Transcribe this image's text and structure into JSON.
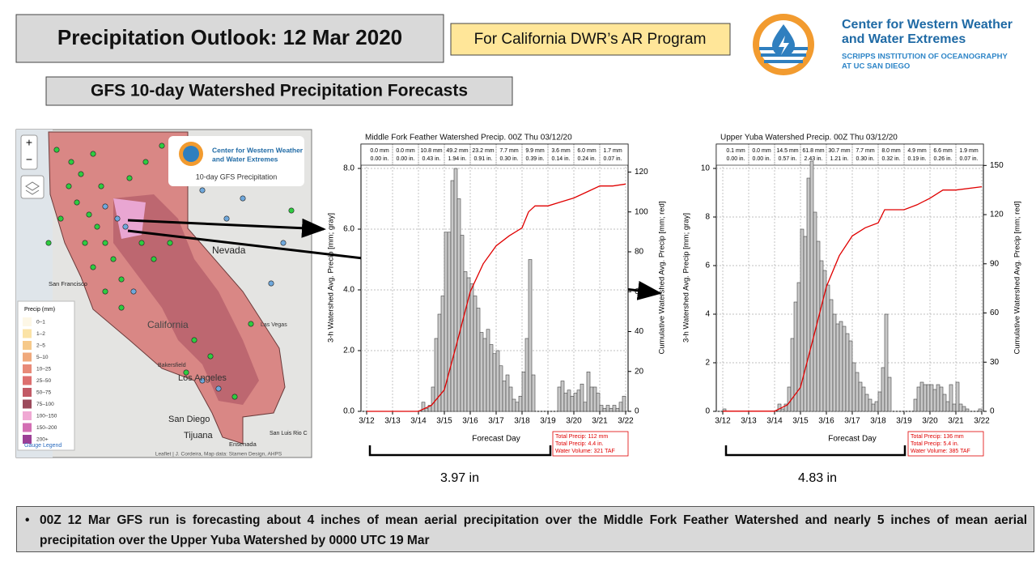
{
  "title": "Precipitation Outlook: 12 Mar 2020",
  "tag": "For California DWR’s AR Program",
  "org": {
    "line1": "Center for Western Weather",
    "line2": "and Water Extremes",
    "sub1": "SCRIPPS INSTITUTION OF OCEANOGRAPHY",
    "sub2": "AT UC SAN DIEGO"
  },
  "subtitle": "GFS 10-day Watershed Precipitation Forecasts",
  "map": {
    "zoom_in": "+",
    "zoom_out": "−",
    "logo_line1": "Center for Western Weather",
    "logo_line2": "and Water Extremes",
    "logo_caption": "10-day GFS Precipitation",
    "places": [
      "Nevada",
      "San Francisco",
      "California",
      "Las Vegas",
      "Bakersfield",
      "Los Angeles",
      "San Diego",
      "Tijuana",
      "Ensenada",
      "San Luis Rio C"
    ],
    "legend_title": "Precip (mm)",
    "legend": [
      "0–1",
      "1–2",
      "2–5",
      "5–10",
      "10–25",
      "25–50",
      "50–75",
      "75–100",
      "100–150",
      "150–200",
      "200+"
    ],
    "legend_colors": [
      "#fdf7e6",
      "#fbe3a6",
      "#f6c98a",
      "#f0a97c",
      "#e88a78",
      "#dd6f6f",
      "#c25a66",
      "#9c4a5c",
      "#f0a9d4",
      "#d36fb4",
      "#9b3f96"
    ],
    "legend_link": "Gauge Legend",
    "attribution": "Leaflet | J. Cordeira, Map data: Stamen Design, AHPS"
  },
  "chart_data": [
    {
      "type": "histogram",
      "title": "Middle Fork Feather Watershed Precip. 00Z Thu 03/12/20",
      "x_label": "Forecast Day",
      "y_label": "3-h Watershed Avg. Precip [mm; gray]",
      "y2_label": "Cumulative Watershed Avg. Precip [mm; red]",
      "bins": [
        0,
        0.125,
        0.25,
        0.375,
        0.5,
        0.625,
        0.75,
        0.875,
        1,
        1.125,
        1.25,
        1.375,
        1.5,
        1.625,
        1.75,
        1.875,
        2,
        2.125,
        2.25,
        2.375,
        2.5,
        2.625,
        2.75,
        2.875,
        3,
        3.125,
        3.25,
        3.375,
        3.5,
        3.625,
        3.75,
        3.875,
        4,
        4.125,
        4.25,
        4.375,
        4.5,
        4.625,
        4.75,
        4.875,
        5,
        5.125,
        5.25,
        5.375,
        5.5,
        5.625,
        5.75,
        5.875,
        6,
        6.125,
        6.25,
        6.375,
        6.5,
        6.625,
        6.75,
        6.875,
        7,
        7.125,
        7.25,
        7.375,
        7.5,
        7.625,
        7.75,
        7.875,
        8,
        8.125,
        8.25,
        8.375,
        8.5,
        8.625,
        8.75,
        8.875,
        9,
        9.125,
        9.25,
        9.375,
        9.5,
        9.625,
        9.75,
        9.875,
        10
      ],
      "values": [
        0,
        0,
        0,
        0,
        0,
        0,
        0,
        0,
        0,
        0,
        0,
        0,
        0,
        0,
        0,
        0,
        0,
        0.3,
        0.1,
        0.2,
        0.8,
        2.4,
        3.2,
        3.8,
        5.9,
        5.9,
        7.6,
        8,
        7,
        5.8,
        4.6,
        4.4,
        4.2,
        3.8,
        3.4,
        2.6,
        2.4,
        2.7,
        2.2,
        1.9,
        2,
        1.5,
        1,
        1.2,
        0.8,
        0.4,
        0.3,
        0.5,
        1.3,
        2.4,
        5,
        1.2,
        0,
        0,
        0,
        0,
        0,
        0,
        0,
        0.8,
        1,
        0.6,
        0.7,
        0.5,
        0.6,
        0.7,
        0.9,
        0.3,
        1.3,
        0.8,
        0.8,
        0.6,
        0.2,
        0.1,
        0.2,
        0.1,
        0.2,
        0.1,
        0.3,
        0.5
      ],
      "color": "#c8c8c8",
      "cumulative": {
        "color": "#e00000",
        "axis": "y2",
        "x": [
          0,
          2,
          2.5,
          3,
          3.5,
          4,
          4.5,
          5,
          5.5,
          6,
          6.25,
          6.5,
          7,
          7.5,
          8,
          8.5,
          9,
          9.5,
          10
        ],
        "values": [
          0,
          0,
          3,
          10.8,
          35,
          60,
          74,
          83,
          88,
          92,
          100,
          103,
          103,
          105,
          107,
          110,
          113,
          113,
          114
        ]
      },
      "xlim": [
        0,
        10
      ],
      "xticks": [
        {
          "value": 0,
          "label": "3/12"
        },
        {
          "value": 1,
          "label": "3/13"
        },
        {
          "value": 2,
          "label": "3/14"
        },
        {
          "value": 3,
          "label": "3/15"
        },
        {
          "value": 4,
          "label": "3/16"
        },
        {
          "value": 5,
          "label": "3/17"
        },
        {
          "value": 6,
          "label": "3/18"
        },
        {
          "value": 7,
          "label": "3/19"
        },
        {
          "value": 8,
          "label": "3/20"
        },
        {
          "value": 9,
          "label": "3/21"
        },
        {
          "value": 10,
          "label": "3/22"
        }
      ],
      "ylim": [
        0,
        8.8
      ],
      "yticks": [
        {
          "value": 0,
          "label": "0.0"
        },
        {
          "value": 2,
          "label": "2.0"
        },
        {
          "value": 4,
          "label": "4.0"
        },
        {
          "value": 6,
          "label": "6.0"
        },
        {
          "value": 8,
          "label": "8.0"
        }
      ],
      "y2lim": [
        0,
        134
      ],
      "y2ticks": [
        0,
        20,
        40,
        60,
        80,
        100,
        120
      ],
      "grid": true,
      "daily_mm": [
        "0.0 mm",
        "0.0 mm",
        "10.8 mm",
        "49.2 mm",
        "23.2 mm",
        "7.7 mm",
        "9.9 mm",
        "3.6 mm",
        "6.0 mm",
        "1.7 mm"
      ],
      "daily_in": [
        "0.00 in.",
        "0.00 in.",
        "0.43 in.",
        "1.94 in.",
        "0.91 in.",
        "0.30 in.",
        "0.39 in.",
        "0.14 in.",
        "0.24 in.",
        "0.07 in."
      ],
      "totals": [
        "Total Precip: 112 mm",
        "Total Precip: 4.4 in.",
        "Water Volume: 321 TAF"
      ]
    },
    {
      "type": "histogram",
      "title": "Upper Yuba Watershed Precip. 00Z Thu 03/12/20",
      "x_label": "Forecast Day",
      "y_label": "3-h Watershed Avg. Precip [mm; gray]",
      "y2_label": "Cumulative Watershed Avg. Precip [mm; red]",
      "bins": [
        0,
        0.125,
        0.25,
        0.375,
        0.5,
        0.625,
        0.75,
        0.875,
        1,
        1.125,
        1.25,
        1.375,
        1.5,
        1.625,
        1.75,
        1.875,
        2,
        2.125,
        2.25,
        2.375,
        2.5,
        2.625,
        2.75,
        2.875,
        3,
        3.125,
        3.25,
        3.375,
        3.5,
        3.625,
        3.75,
        3.875,
        4,
        4.125,
        4.25,
        4.375,
        4.5,
        4.625,
        4.75,
        4.875,
        5,
        5.125,
        5.25,
        5.375,
        5.5,
        5.625,
        5.75,
        5.875,
        6,
        6.125,
        6.25,
        6.375,
        6.5,
        6.625,
        6.75,
        6.875,
        7,
        7.125,
        7.25,
        7.375,
        7.5,
        7.625,
        7.75,
        7.875,
        8,
        8.125,
        8.25,
        8.375,
        8.5,
        8.625,
        8.75,
        8.875,
        9,
        9.125,
        9.25,
        9.375,
        9.5,
        9.625,
        9.75,
        9.875,
        10
      ],
      "values": [
        0.1,
        0,
        0,
        0,
        0,
        0,
        0,
        0,
        0,
        0,
        0,
        0,
        0,
        0,
        0,
        0,
        0,
        0.3,
        0.1,
        0.3,
        1,
        3,
        4.5,
        5.3,
        7.5,
        7.2,
        9.6,
        10.3,
        8.2,
        7,
        6.2,
        5.8,
        5.2,
        4.6,
        4,
        3.6,
        3.7,
        3.5,
        3.2,
        2.9,
        2,
        1.6,
        1.2,
        1,
        0.7,
        0.5,
        0.3,
        0.4,
        0.8,
        1.8,
        4,
        1.4,
        0,
        0,
        0,
        0,
        0,
        0,
        0,
        0.5,
        1,
        1.2,
        1.1,
        1.1,
        1.1,
        0.9,
        1.1,
        1,
        0.7,
        0.4,
        1.1,
        0.3,
        1.2,
        0.3,
        0.2,
        0.1,
        0,
        0,
        0,
        0.1
      ],
      "color": "#c8c8c8",
      "cumulative": {
        "color": "#e00000",
        "axis": "y2",
        "x": [
          0,
          2,
          2.5,
          3,
          3.5,
          4,
          4.5,
          5,
          5.5,
          6,
          6.25,
          6.5,
          7,
          7.5,
          8,
          8.5,
          9,
          10
        ],
        "values": [
          0.1,
          0.1,
          4,
          14.6,
          45,
          76,
          95,
          107,
          112,
          115,
          123,
          123,
          123,
          126,
          130,
          135,
          135,
          137
        ]
      },
      "xlim": [
        0,
        10
      ],
      "xticks": [
        {
          "value": 0,
          "label": "3/12"
        },
        {
          "value": 1,
          "label": "3/13"
        },
        {
          "value": 2,
          "label": "3/14"
        },
        {
          "value": 3,
          "label": "3/15"
        },
        {
          "value": 4,
          "label": "3/16"
        },
        {
          "value": 5,
          "label": "3/17"
        },
        {
          "value": 6,
          "label": "3/18"
        },
        {
          "value": 7,
          "label": "3/19"
        },
        {
          "value": 8,
          "label": "3/20"
        },
        {
          "value": 9,
          "label": "3/21"
        },
        {
          "value": 10,
          "label": "3/22"
        }
      ],
      "ylim": [
        0,
        11
      ],
      "yticks": [
        0,
        2,
        4,
        6,
        8,
        10
      ],
      "y2lim": [
        0,
        163
      ],
      "y2ticks": [
        0,
        30,
        60,
        90,
        120,
        150
      ],
      "grid": true,
      "daily_mm": [
        "0.1 mm",
        "0.0 mm",
        "14.5 mm",
        "61.8 mm",
        "30.7 mm",
        "7.7 mm",
        "8.0 mm",
        "4.9 mm",
        "6.6 mm",
        "1.9 mm"
      ],
      "daily_in": [
        "0.00 in.",
        "0.00 in.",
        "0.57 in.",
        "2.43 in.",
        "1.21 in.",
        "0.30 in.",
        "0.32 in.",
        "0.19 in.",
        "0.26 in.",
        "0.07 in."
      ],
      "totals": [
        "Total Precip: 136 mm",
        "Total Precip: 5.4 in.",
        "Water Volume: 385 TAF"
      ]
    }
  ],
  "brackets": [
    "3.97 in",
    "4.83 in"
  ],
  "bullet": "00Z 12 Mar GFS run is forecasting about 4 inches of mean aerial precipitation over the Middle Fork Feather Watershed and nearly 5 inches of mean aerial precipitation over the Upper Yuba Watershed by 0000 UTC 19 Mar"
}
